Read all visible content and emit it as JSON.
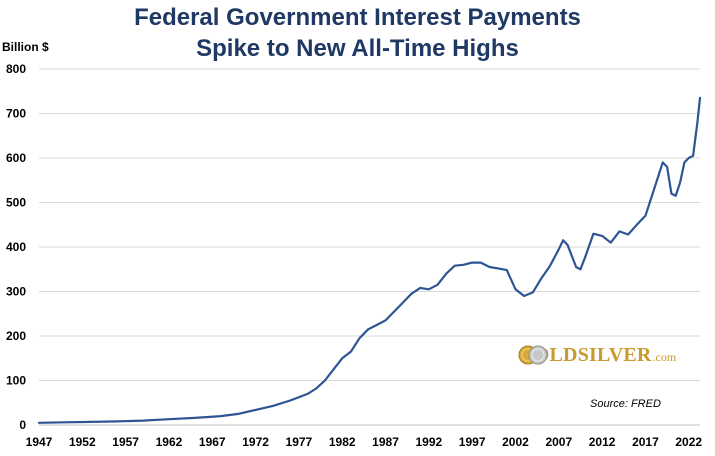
{
  "title_line1": "Federal Government Interest Payments",
  "title_line2": "Spike to New All-Time Highs",
  "logo": {
    "text": "GOLDSILVER",
    "suffix": ".com",
    "icon": "gold-silver-coins-icon"
  },
  "source": "Source: FRED",
  "chart_data": {
    "type": "line",
    "title": "Federal Government Interest Payments Spike to New All-Time Highs",
    "xlabel": "",
    "ylabel": "Billion $",
    "ylim": [
      0,
      800
    ],
    "xlim": [
      1947,
      2023.3
    ],
    "yticks": [
      0,
      100,
      200,
      300,
      400,
      500,
      600,
      700,
      800
    ],
    "xtick_labels": [
      "1947",
      "1952",
      "1957",
      "1962",
      "1967",
      "1972",
      "1977",
      "1982",
      "1987",
      "1992",
      "1997",
      "2002",
      "2007",
      "2012",
      "2017",
      "2022"
    ],
    "grid": "horizontal",
    "color": "#2e5593",
    "series": [
      {
        "name": "",
        "x": [
          1947,
          1950,
          1953,
          1956,
          1959,
          1962,
          1965,
          1968,
          1970,
          1972,
          1974,
          1976,
          1978,
          1979,
          1980,
          1981,
          1982,
          1983,
          1984,
          1985,
          1986,
          1987,
          1988,
          1989,
          1990,
          1991,
          1992,
          1993,
          1994,
          1995,
          1996,
          1997,
          1998,
          1999,
          2000,
          2001,
          2002,
          2003,
          2004,
          2005,
          2006,
          2007,
          2007.5,
          2008,
          2008.5,
          2009,
          2009.5,
          2010,
          2011,
          2012,
          2013,
          2014,
          2015,
          2016,
          2017,
          2018,
          2019,
          2019.5,
          2020,
          2020.5,
          2021,
          2021.5,
          2022,
          2022.5,
          2023,
          2023.3
        ],
        "values": [
          5,
          6,
          7,
          8,
          10,
          13,
          16,
          20,
          25,
          34,
          43,
          55,
          70,
          82,
          100,
          125,
          150,
          165,
          195,
          215,
          225,
          235,
          255,
          275,
          295,
          308,
          305,
          315,
          340,
          358,
          360,
          365,
          365,
          355,
          352,
          348,
          305,
          290,
          298,
          330,
          358,
          395,
          415,
          405,
          380,
          355,
          350,
          375,
          430,
          425,
          410,
          435,
          428,
          450,
          470,
          530,
          590,
          580,
          520,
          515,
          545,
          590,
          600,
          605,
          680,
          735
        ]
      }
    ]
  }
}
